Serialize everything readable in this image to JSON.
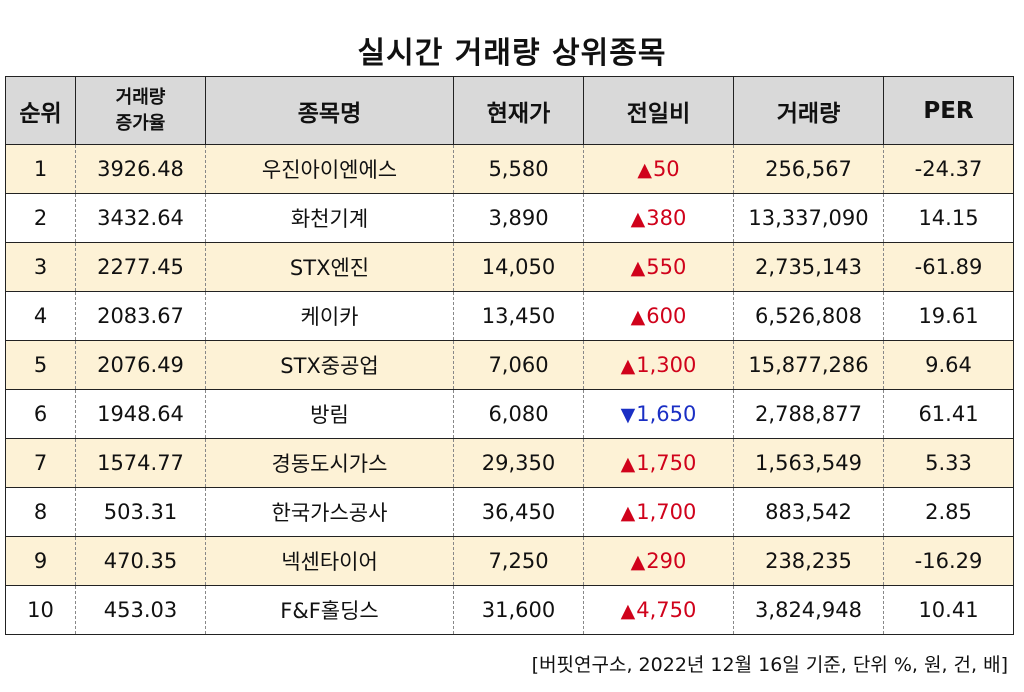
{
  "title": "실시간 거래량 상위종목",
  "columns": [
    "순위",
    "거래량 증가율",
    "종목명",
    "현재가",
    "전일비",
    "거래량",
    "PER"
  ],
  "columns_small_line1": "거래량",
  "columns_small_line2": "증가율",
  "rows": [
    {
      "rank": "1",
      "rate": "3926.48",
      "name": "우진아이엔에스",
      "price": "5,580",
      "dir": "up",
      "change": "50",
      "volume": "256,567",
      "per": "-24.37"
    },
    {
      "rank": "2",
      "rate": "3432.64",
      "name": "화천기계",
      "price": "3,890",
      "dir": "up",
      "change": "380",
      "volume": "13,337,090",
      "per": "14.15"
    },
    {
      "rank": "3",
      "rate": "2277.45",
      "name": "STX엔진",
      "price": "14,050",
      "dir": "up",
      "change": "550",
      "volume": "2,735,143",
      "per": "-61.89"
    },
    {
      "rank": "4",
      "rate": "2083.67",
      "name": "케이카",
      "price": "13,450",
      "dir": "up",
      "change": "600",
      "volume": "6,526,808",
      "per": "19.61"
    },
    {
      "rank": "5",
      "rate": "2076.49",
      "name": "STX중공업",
      "price": "7,060",
      "dir": "up",
      "change": "1,300",
      "volume": "15,877,286",
      "per": "9.64"
    },
    {
      "rank": "6",
      "rate": "1948.64",
      "name": "방림",
      "price": "6,080",
      "dir": "down",
      "change": "1,650",
      "volume": "2,788,877",
      "per": "61.41"
    },
    {
      "rank": "7",
      "rate": "1574.77",
      "name": "경동도시가스",
      "price": "29,350",
      "dir": "up",
      "change": "1,750",
      "volume": "1,563,549",
      "per": "5.33"
    },
    {
      "rank": "8",
      "rate": "503.31",
      "name": "한국가스공사",
      "price": "36,450",
      "dir": "up",
      "change": "1,700",
      "volume": "883,542",
      "per": "2.85"
    },
    {
      "rank": "9",
      "rate": "470.35",
      "name": "넥센타이어",
      "price": "7,250",
      "dir": "up",
      "change": "290",
      "volume": "238,235",
      "per": "-16.29"
    },
    {
      "rank": "10",
      "rate": "453.03",
      "name": "F&F홀딩스",
      "price": "31,600",
      "dir": "up",
      "change": "4,750",
      "volume": "3,824,948",
      "per": "10.41"
    }
  ],
  "footer": "[버핏연구소, 2022년 12월 16일 기준, 단위 %, 원, 건, 배]",
  "colors": {
    "up": "#d0021b",
    "down": "#1a2fc4",
    "odd_row": "#fdf2d6",
    "header": "#d9d9d9"
  }
}
